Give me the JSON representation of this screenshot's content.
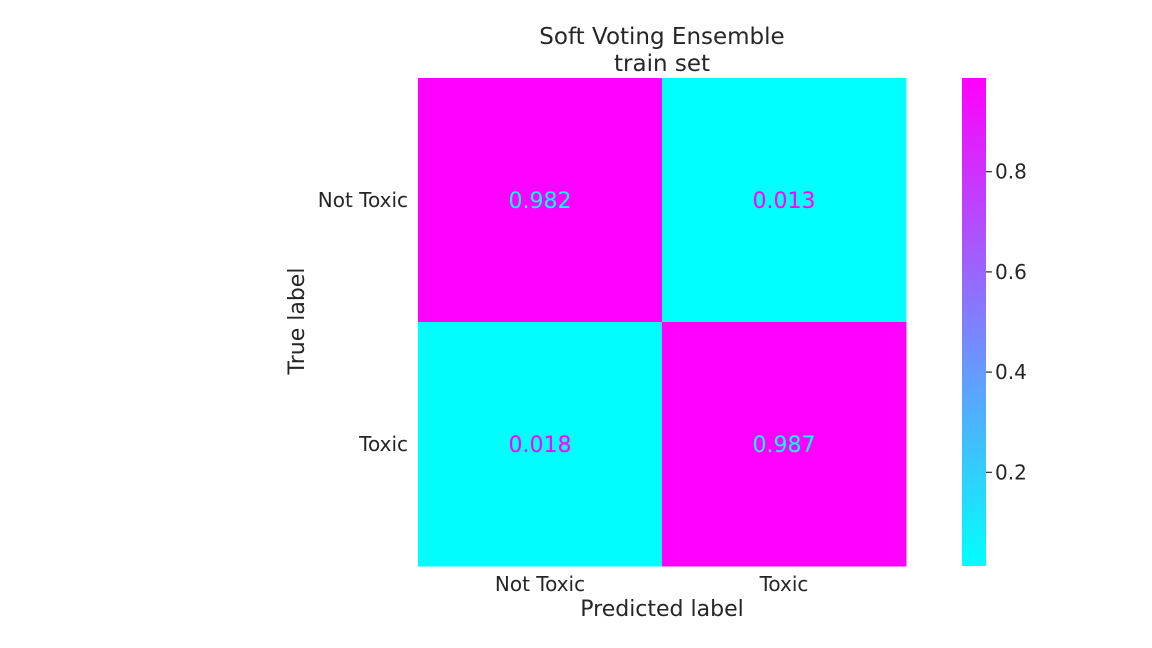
{
  "chart_data": {
    "type": "heatmap",
    "title": "Soft Voting Ensemble",
    "subtitle": "train set",
    "xlabel": "Predicted label",
    "ylabel": "True label",
    "x_categories": [
      "Not Toxic",
      "Toxic"
    ],
    "y_categories": [
      "Not Toxic",
      "Toxic"
    ],
    "values": [
      [
        0.982,
        0.013
      ],
      [
        0.018,
        0.987
      ]
    ],
    "value_labels": [
      [
        "0.982",
        "0.013"
      ],
      [
        "0.018",
        "0.987"
      ]
    ],
    "colormap": "cool",
    "colormap_low": "#00ffff",
    "colormap_high": "#ff00ff",
    "colorbar": {
      "vmin": 0.013,
      "vmax": 0.987,
      "ticks": [
        0.2,
        0.4,
        0.6,
        0.8
      ],
      "tick_labels": [
        "0.2",
        "0.4",
        "0.6",
        "0.8"
      ]
    },
    "grid": false
  }
}
